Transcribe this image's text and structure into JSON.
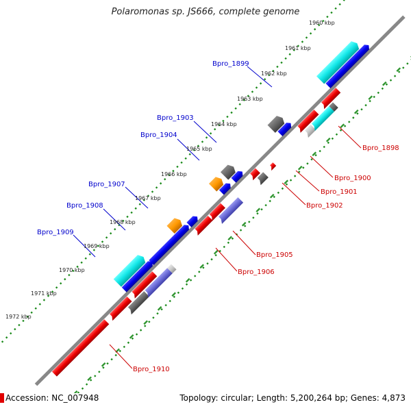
{
  "title": "Polaromonas sp. JS666, complete genome",
  "footer": {
    "accession": "Accession: NC_007948",
    "stats": "Topology: circular; Length: 5,200,264 bp; Genes: 4,873"
  },
  "colors": {
    "backbone": "#888888",
    "kbp_dots": "#1a8a1a",
    "forward_label": "#0000cc",
    "reverse_label": "#cc0000"
  },
  "kbp_ticks": [
    "1960 kbp",
    "1961 kbp",
    "1962 kbp",
    "1963 kbp",
    "1964 kbp",
    "1965 kbp",
    "1966 kbp",
    "1967 kbp",
    "1968 kbp",
    "1969 kbp",
    "1970 kbp",
    "1971 kbp",
    "1972 kbp"
  ],
  "gene_labels": {
    "Bpro_1898": "Bpro_1898",
    "Bpro_1899": "Bpro_1899",
    "Bpro_1900": "Bpro_1900",
    "Bpro_1901": "Bpro_1901",
    "Bpro_1902": "Bpro_1902",
    "Bpro_1903": "Bpro_1903",
    "Bpro_1904": "Bpro_1904",
    "Bpro_1905": "Bpro_1905",
    "Bpro_1906": "Bpro_1906",
    "Bpro_1907": "Bpro_1907",
    "Bpro_1908": "Bpro_1908",
    "Bpro_1909": "Bpro_1909",
    "Bpro_1910": "Bpro_1910"
  }
}
